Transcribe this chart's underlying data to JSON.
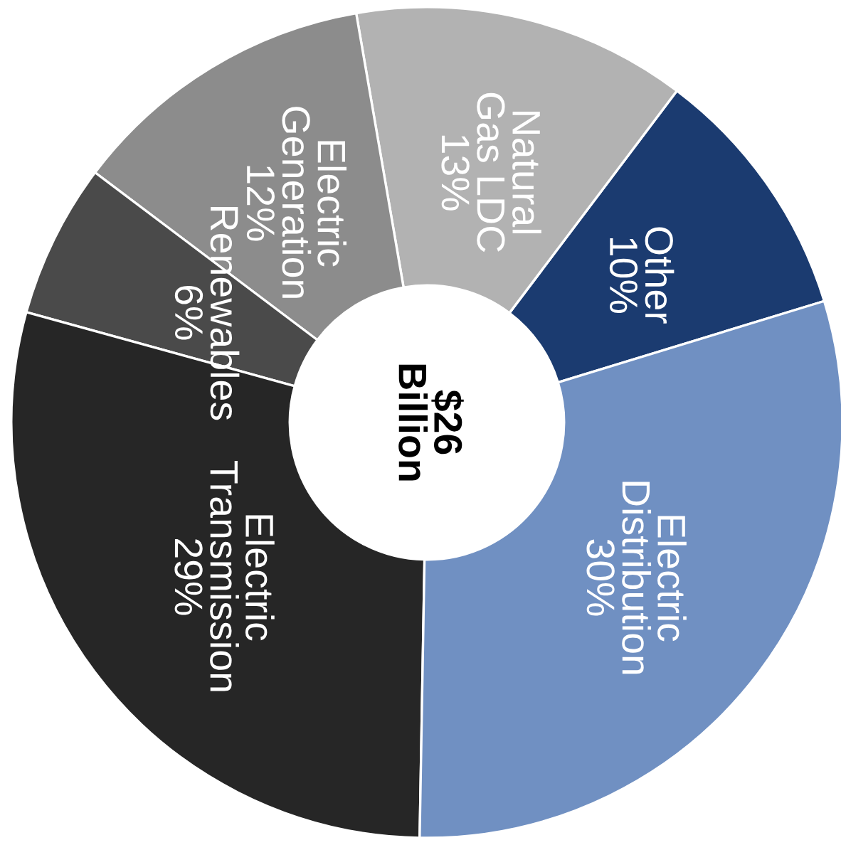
{
  "chart_data": {
    "type": "donut",
    "categories": [
      "Other",
      "Natural\nGas LDC",
      "Electric\nGeneration",
      "Renewables",
      "Electric\nTransmission",
      "Electric\nDistribution"
    ],
    "values": [
      10,
      13,
      12,
      6,
      29,
      30
    ],
    "colors": [
      "#1b3b70",
      "#b2b2b2",
      "#8c8c8c",
      "#4a4a4a",
      "#262626",
      "#7090c2"
    ],
    "value_labels": [
      "10%",
      "13%",
      "12%",
      "6%",
      "29%",
      "30%"
    ],
    "annotations": [
      "$26\nBillion"
    ]
  }
}
